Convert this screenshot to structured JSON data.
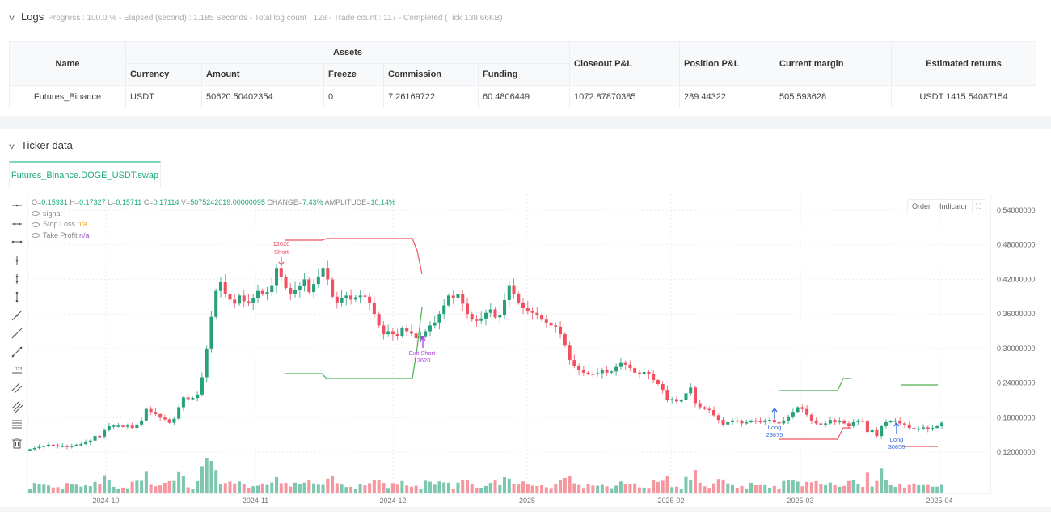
{
  "logs": {
    "title": "Logs",
    "summary": "Progress : 100.0 % - Elapsed (second) : 1.185  Seconds - Total log count : 128 - Trade count : 117 - Completed (Tick 138.66KB)",
    "table": {
      "headers": {
        "name": "Name",
        "assets": "Assets",
        "currency": "Currency",
        "amount": "Amount",
        "freeze": "Freeze",
        "commission": "Commission",
        "funding": "Funding",
        "closeout_pl": "Closeout P&L",
        "position_pl": "Position P&L",
        "current_margin": "Current margin",
        "estimated_returns": "Estimated returns"
      },
      "rows": [
        {
          "name": "Futures_Binance",
          "currency": "USDT",
          "amount": "50620.50402354",
          "freeze": "0",
          "commission": "7.26169722",
          "funding": "60.4806449",
          "closeout_pl": "1072.87870385",
          "position_pl": "289.44322",
          "current_margin": "505.593628",
          "estimated_returns": "USDT 1415.54087154"
        }
      ]
    }
  },
  "ticker": {
    "title": "Ticker data",
    "tab": "Futures_Binance.DOGE_USDT.swap",
    "ohlc": {
      "o_label": "O=",
      "o": "0.15931",
      "h_label": "H=",
      "h": "0.17327",
      "l_label": "L=",
      "l": "0.15711",
      "c_label": "C=",
      "c": "0.17114",
      "v_label": "V=",
      "v": "5075242019.00000095",
      "change_label": "CHANGE=",
      "change": "7.43%",
      "amp_label": "AMPLITUDE=",
      "amp": "10.14%"
    },
    "legend": [
      {
        "label": "signal",
        "value": ""
      },
      {
        "label": "Stop Loss",
        "value": "n/a"
      },
      {
        "label": "Take Profit",
        "value": "n/a"
      }
    ],
    "buttons": {
      "order": "Order",
      "indicator": "Indicator",
      "fullscreen": "⛶"
    }
  },
  "chart_data": {
    "type": "candlestick",
    "title": "Futures_Binance.DOGE_USDT.swap",
    "y_axis": {
      "ticks": [
        "0.54000000",
        "0.48000000",
        "0.42000000",
        "0.36000000",
        "0.30000000",
        "0.24000000",
        "0.18000000",
        "0.12000000"
      ],
      "range": [
        0.08,
        0.56
      ]
    },
    "x_axis": {
      "ticks": [
        "2024-10",
        "2024-11",
        "2024-12",
        "2025",
        "2025-02",
        "2025-03",
        "2025-04"
      ]
    },
    "colors": {
      "up": "#26a17b",
      "down": "#f0505f",
      "take_profit": "#4caf50",
      "stop_loss": "#f0505f",
      "long_marker": "#3b6ce0",
      "exit_marker": "#b23fe0"
    },
    "annotations": [
      {
        "label": "Short",
        "qty": "12620",
        "date": "2024-11-08",
        "price": 0.465
      },
      {
        "label": "Exit Short",
        "qty": "12620",
        "date": "2024-12-10",
        "price": 0.31
      },
      {
        "label": "Long",
        "qty": "29875",
        "date": "2025-02-28",
        "price": 0.165
      },
      {
        "label": "Long",
        "qty": "30850",
        "date": "2025-03-24",
        "price": 0.16
      }
    ],
    "last_bar": {
      "o": 0.15931,
      "h": 0.17327,
      "l": 0.15711,
      "c": 0.17114,
      "v": 5075242019.000001,
      "change": "7.43%",
      "amplitude": "10.14%"
    }
  }
}
